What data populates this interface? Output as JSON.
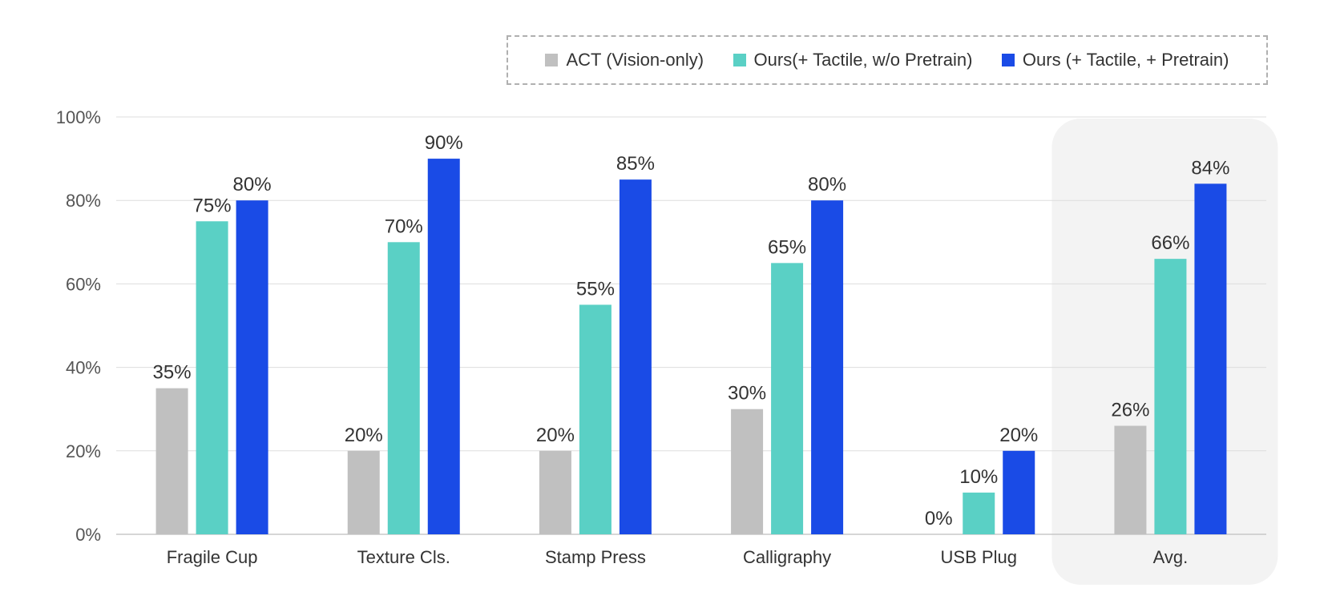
{
  "chart_data": {
    "type": "bar",
    "categories": [
      "Fragile Cup",
      "Texture Cls.",
      "Stamp Press",
      "Calligraphy",
      "USB Plug",
      "Avg."
    ],
    "series": [
      {
        "name": "ACT (Vision-only)",
        "values": [
          35,
          20,
          20,
          30,
          0,
          26
        ],
        "labels": [
          "35%",
          "20%",
          "20%",
          "30%",
          "0%",
          "26%"
        ],
        "color": "#c0c0c0"
      },
      {
        "name": "Ours(+ Tactile, w/o Pretrain)",
        "values": [
          75,
          70,
          55,
          65,
          10,
          66
        ],
        "labels": [
          "75%",
          "70%",
          "55%",
          "65%",
          "10%",
          "66%"
        ],
        "color": "#5ad0c5"
      },
      {
        "name": "Ours (+ Tactile, + Pretrain)",
        "values": [
          80,
          90,
          85,
          80,
          20,
          84
        ],
        "labels": [
          "80%",
          "90%",
          "85%",
          "80%",
          "20%",
          "84%"
        ],
        "color": "#1a4be6"
      }
    ],
    "y_ticks": [
      "0%",
      "20%",
      "40%",
      "60%",
      "80%",
      "100%"
    ],
    "ylim": [
      0,
      100
    ],
    "grid": true,
    "legend_position": "top-right",
    "highlighted_category": "Avg.",
    "highlight_color": "#f3f3f3",
    "gridline_color": "#dddddd",
    "text_color": "#333333"
  }
}
